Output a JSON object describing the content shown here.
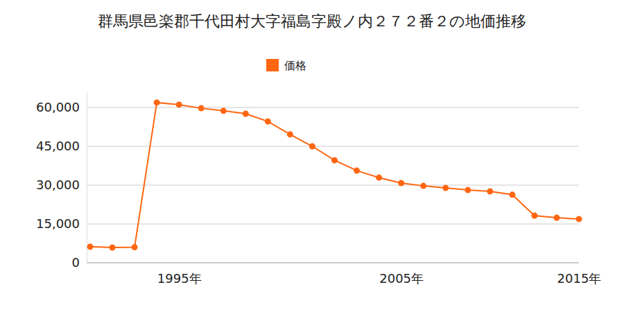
{
  "chart_data": {
    "type": "line",
    "title": "群馬県邑楽郡千代田村大字福島字殿ノ内２７２番２の地価推移",
    "categories": [
      null,
      null,
      null,
      null,
      "1995年",
      null,
      null,
      null,
      null,
      null,
      null,
      null,
      null,
      null,
      "2005年",
      null,
      null,
      null,
      null,
      null,
      null,
      null,
      "2015年"
    ],
    "series": [
      {
        "name": "価格",
        "color": "#ff6611",
        "marker": "circle",
        "values": [
          6200,
          5900,
          6000,
          61900,
          61100,
          59700,
          58700,
          57600,
          54600,
          49600,
          45000,
          39600,
          35600,
          32900,
          30800,
          29700,
          28900,
          28100,
          27600,
          26300,
          18200,
          17400,
          16900
        ]
      }
    ],
    "ylim": [
      0,
      66000
    ],
    "yticks": [
      0,
      {
        "value": 15000,
        "label": "15,000"
      },
      {
        "value": 30000,
        "label": "30,000"
      },
      {
        "value": 45000,
        "label": "45,000"
      },
      {
        "value": 60000,
        "label": "60,000"
      }
    ],
    "grid": true,
    "legend": "top"
  }
}
